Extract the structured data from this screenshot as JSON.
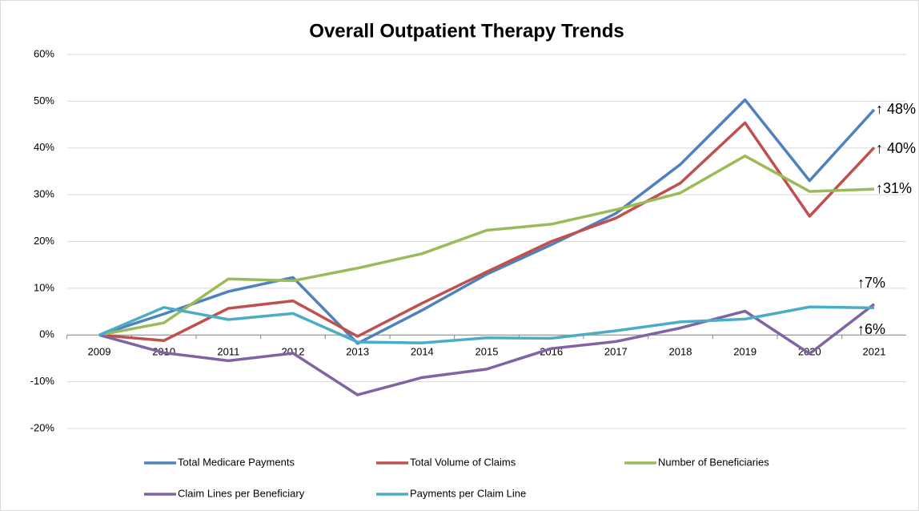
{
  "chart_data": {
    "type": "line",
    "title": "Overall Outpatient Therapy Trends",
    "categories": [
      "2009",
      "2010",
      "2011",
      "2012",
      "2013",
      "2014",
      "2015",
      "2016",
      "2017",
      "2018",
      "2019",
      "2020",
      "2021"
    ],
    "series": [
      {
        "name": "Total Medicare Payments",
        "color": "#4f81bd",
        "values": [
          0,
          4.5,
          9.3,
          12.3,
          -1.8,
          5.3,
          13,
          19.3,
          26,
          36.5,
          50.3,
          33,
          48.2
        ]
      },
      {
        "name": "Total Volume of Claims",
        "color": "#c0504d",
        "values": [
          0,
          -1.2,
          5.7,
          7.3,
          -0.3,
          6.8,
          13.5,
          20,
          25,
          32.5,
          45.4,
          25.4,
          40.1
        ]
      },
      {
        "name": "Number of Beneficiaries",
        "color": "#9bbb59",
        "values": [
          0,
          2.6,
          12,
          11.6,
          14.3,
          17.4,
          22.4,
          23.7,
          26.8,
          30.4,
          38.3,
          30.7,
          31.2
        ]
      },
      {
        "name": "Claim Lines per Beneficiary",
        "color": "#8064a2",
        "values": [
          0,
          -3.8,
          -5.5,
          -3.9,
          -12.8,
          -9.1,
          -7.3,
          -2.9,
          -1.4,
          1.5,
          5.1,
          -4,
          6.6
        ]
      },
      {
        "name": "Payments per Claim Line",
        "color": "#4bacc6",
        "values": [
          0,
          5.9,
          3.3,
          4.6,
          -1.5,
          -1.7,
          -0.6,
          -0.7,
          0.9,
          2.8,
          3.4,
          6.0,
          5.8
        ]
      }
    ],
    "annotations": [
      "↑ 48%",
      "↑ 40%",
      "↑31%",
      "↑7%",
      "↑6%"
    ],
    "ylim": [
      -20,
      60
    ],
    "yticks": [
      {
        "value": -20,
        "label": "-20%"
      },
      {
        "value": -10,
        "label": "-10%"
      },
      {
        "value": 0,
        "label": "0%"
      },
      {
        "value": 10,
        "label": "10%"
      },
      {
        "value": 20,
        "label": "20%"
      },
      {
        "value": 30,
        "label": "30%"
      },
      {
        "value": 40,
        "label": "40%"
      },
      {
        "value": 50,
        "label": "50%"
      },
      {
        "value": 60,
        "label": "60%"
      }
    ],
    "grid": true
  }
}
